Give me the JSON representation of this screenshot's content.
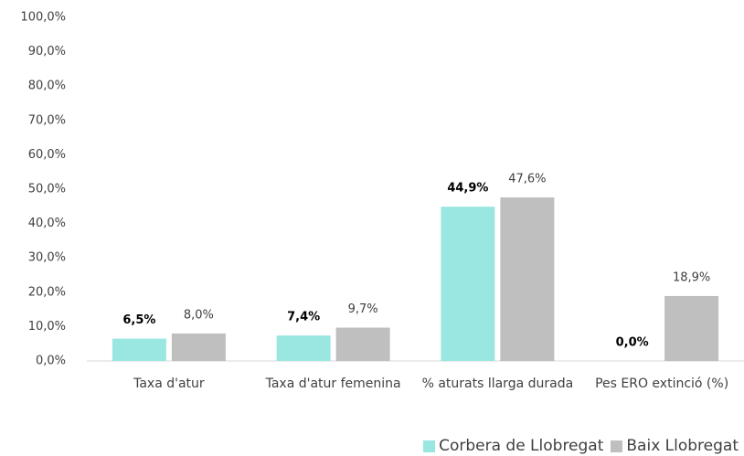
{
  "chart_data": {
    "type": "bar",
    "categories": [
      "Taxa d'atur",
      "Taxa d'atur femenina",
      "% aturats llarga durada",
      "Pes ERO extinció (%)"
    ],
    "series": [
      {
        "name": "Corbera de Llobregat",
        "color": "#9ae7e1",
        "values": [
          6.5,
          7.4,
          44.9,
          0.0
        ],
        "value_labels": [
          "6,5%",
          "7,4%",
          "44,9%",
          "0,0%"
        ]
      },
      {
        "name": "Baix Llobregat",
        "color": "#bfbfbf",
        "values": [
          8.0,
          9.7,
          47.6,
          18.9
        ],
        "value_labels": [
          "8,0%",
          "9,7%",
          "47,6%",
          "18,9%"
        ]
      }
    ],
    "ylim": [
      0,
      100
    ],
    "yticks": [
      {
        "value": 0,
        "label": "0,0%"
      },
      {
        "value": 10,
        "label": "10,0%"
      },
      {
        "value": 20,
        "label": "20,0%"
      },
      {
        "value": 30,
        "label": "30,0%"
      },
      {
        "value": 40,
        "label": "40,0%"
      },
      {
        "value": 50,
        "label": "50,0%"
      },
      {
        "value": 60,
        "label": "60,0%"
      },
      {
        "value": 70,
        "label": "70,0%"
      },
      {
        "value": 80,
        "label": "80,0%"
      },
      {
        "value": 90,
        "label": "90,0%"
      },
      {
        "value": 100,
        "label": "100,0%"
      }
    ],
    "grid": false,
    "legend": "bottom-right"
  }
}
